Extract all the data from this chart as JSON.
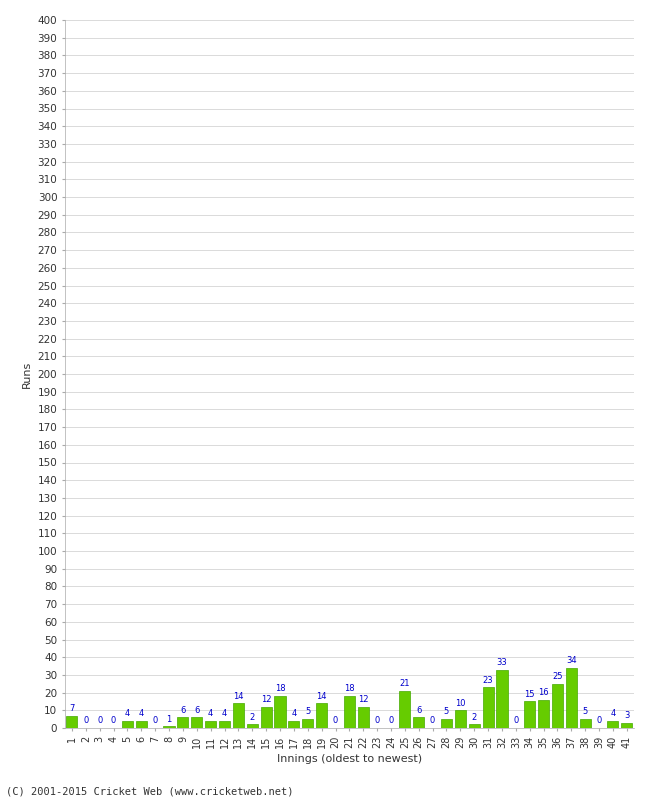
{
  "values": [
    7,
    0,
    0,
    0,
    4,
    4,
    0,
    1,
    6,
    6,
    4,
    4,
    14,
    2,
    12,
    18,
    4,
    5,
    14,
    0,
    18,
    12,
    0,
    0,
    21,
    6,
    0,
    5,
    10,
    2,
    23,
    33,
    0,
    15,
    16,
    25,
    34,
    5,
    0,
    4,
    3
  ],
  "bar_color": "#66cc00",
  "bar_edge_color": "#44aa00",
  "label_color": "#0000cc",
  "ylabel": "Runs",
  "xlabel": "Innings (oldest to newest)",
  "ylim": [
    0,
    400
  ],
  "background_color": "#ffffff",
  "grid_color": "#cccccc",
  "footer": "(C) 2001-2015 Cricket Web (www.cricketweb.net)"
}
